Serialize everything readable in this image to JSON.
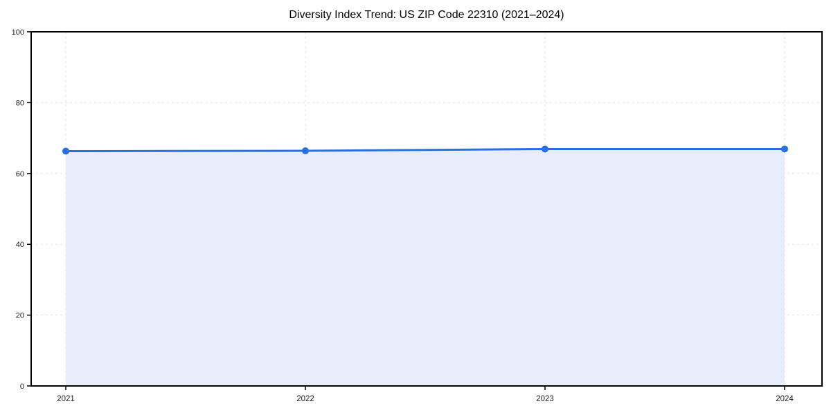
{
  "page": {
    "background_color": "#ffffff"
  },
  "chart_data": {
    "type": "line",
    "title": "Diversity Index Trend: US ZIP Code 22310 (2021–2024)",
    "x": [
      "2021",
      "2022",
      "2023",
      "2024"
    ],
    "values": [
      66.3,
      66.4,
      66.9,
      66.9
    ],
    "xlabel": "",
    "ylabel": "",
    "ylim": [
      0,
      100
    ],
    "yticks": [
      0,
      20,
      40,
      60,
      80,
      100
    ],
    "grid": true,
    "grid_style": "dashed",
    "legend_position": "none",
    "area_fill": true,
    "marker": "circle",
    "colors": {
      "line": "#2a6fe0",
      "marker": "#2a6fe0",
      "area": "#e7edfa",
      "grid": "#e0e0e0",
      "spine": "#000000",
      "text": "#1a1a1a",
      "title": "#000000"
    }
  }
}
